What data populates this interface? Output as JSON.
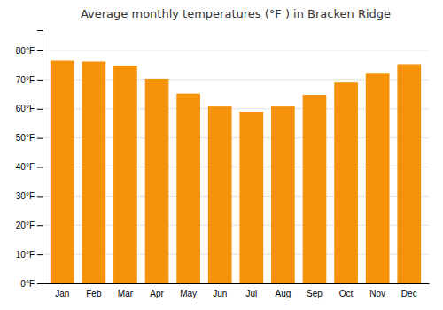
{
  "chart_data": {
    "type": "bar",
    "title": "Average monthly temperatures (°F ) in Bracken Ridge",
    "categories": [
      "Jan",
      "Feb",
      "Mar",
      "Apr",
      "May",
      "Jun",
      "Jul",
      "Aug",
      "Sep",
      "Oct",
      "Nov",
      "Dec"
    ],
    "values": [
      76.5,
      76.2,
      74.8,
      70.3,
      65.2,
      60.8,
      59.0,
      60.8,
      64.8,
      69.0,
      72.3,
      75.3
    ],
    "color": "#F5920A",
    "ylim": [
      0,
      87
    ],
    "yticks": [
      {
        "value": 0,
        "label": "0°F"
      },
      {
        "value": 10,
        "label": "10°F"
      },
      {
        "value": 20,
        "label": "20°F"
      },
      {
        "value": 30,
        "label": "30°F"
      },
      {
        "value": 40,
        "label": "40°F"
      },
      {
        "value": 50,
        "label": "50°F"
      },
      {
        "value": 60,
        "label": "60°F"
      },
      {
        "value": 70,
        "label": "70°F"
      },
      {
        "value": 80,
        "label": "80°F"
      }
    ],
    "grid": true
  }
}
